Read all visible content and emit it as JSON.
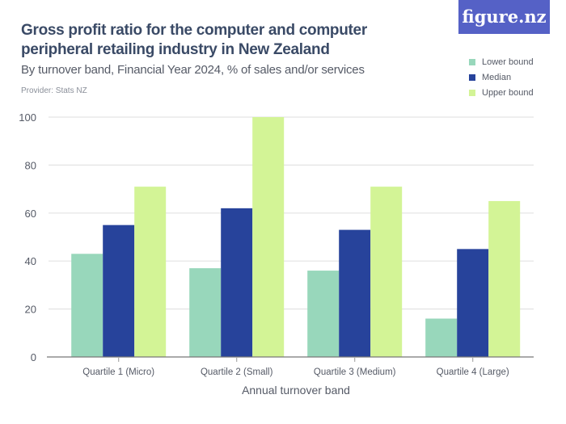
{
  "header": {
    "title": "Gross profit ratio for the computer and computer peripheral retailing industry in New Zealand",
    "subtitle": "By turnover band, Financial Year 2024, % of sales and/or services",
    "provider": "Provider: Stats NZ",
    "logo": "figure.nz"
  },
  "chart_data": {
    "type": "bar",
    "title": "Gross profit ratio for the computer and computer peripheral retailing industry in New Zealand",
    "subtitle": "By turnover band, Financial Year 2024, % of sales and/or services",
    "xlabel": "Annual turnover band",
    "ylabel": "",
    "ylim": [
      0,
      100
    ],
    "yticks": [
      "0",
      "20",
      "40",
      "60",
      "80",
      "100"
    ],
    "grid": true,
    "legend_position": "top-right",
    "categories": [
      "Quartile 1 (Micro)",
      "Quartile 2 (Small)",
      "Quartile 3 (Medium)",
      "Quartile 4 (Large)"
    ],
    "series": [
      {
        "name": "Lower bound",
        "color": "#98d7bb",
        "values": [
          43,
          37,
          36,
          16
        ]
      },
      {
        "name": "Median",
        "color": "#27439b",
        "values": [
          55,
          62,
          53,
          45
        ]
      },
      {
        "name": "Upper bound",
        "color": "#d3f496",
        "values": [
          71,
          100,
          71,
          65
        ]
      }
    ]
  }
}
